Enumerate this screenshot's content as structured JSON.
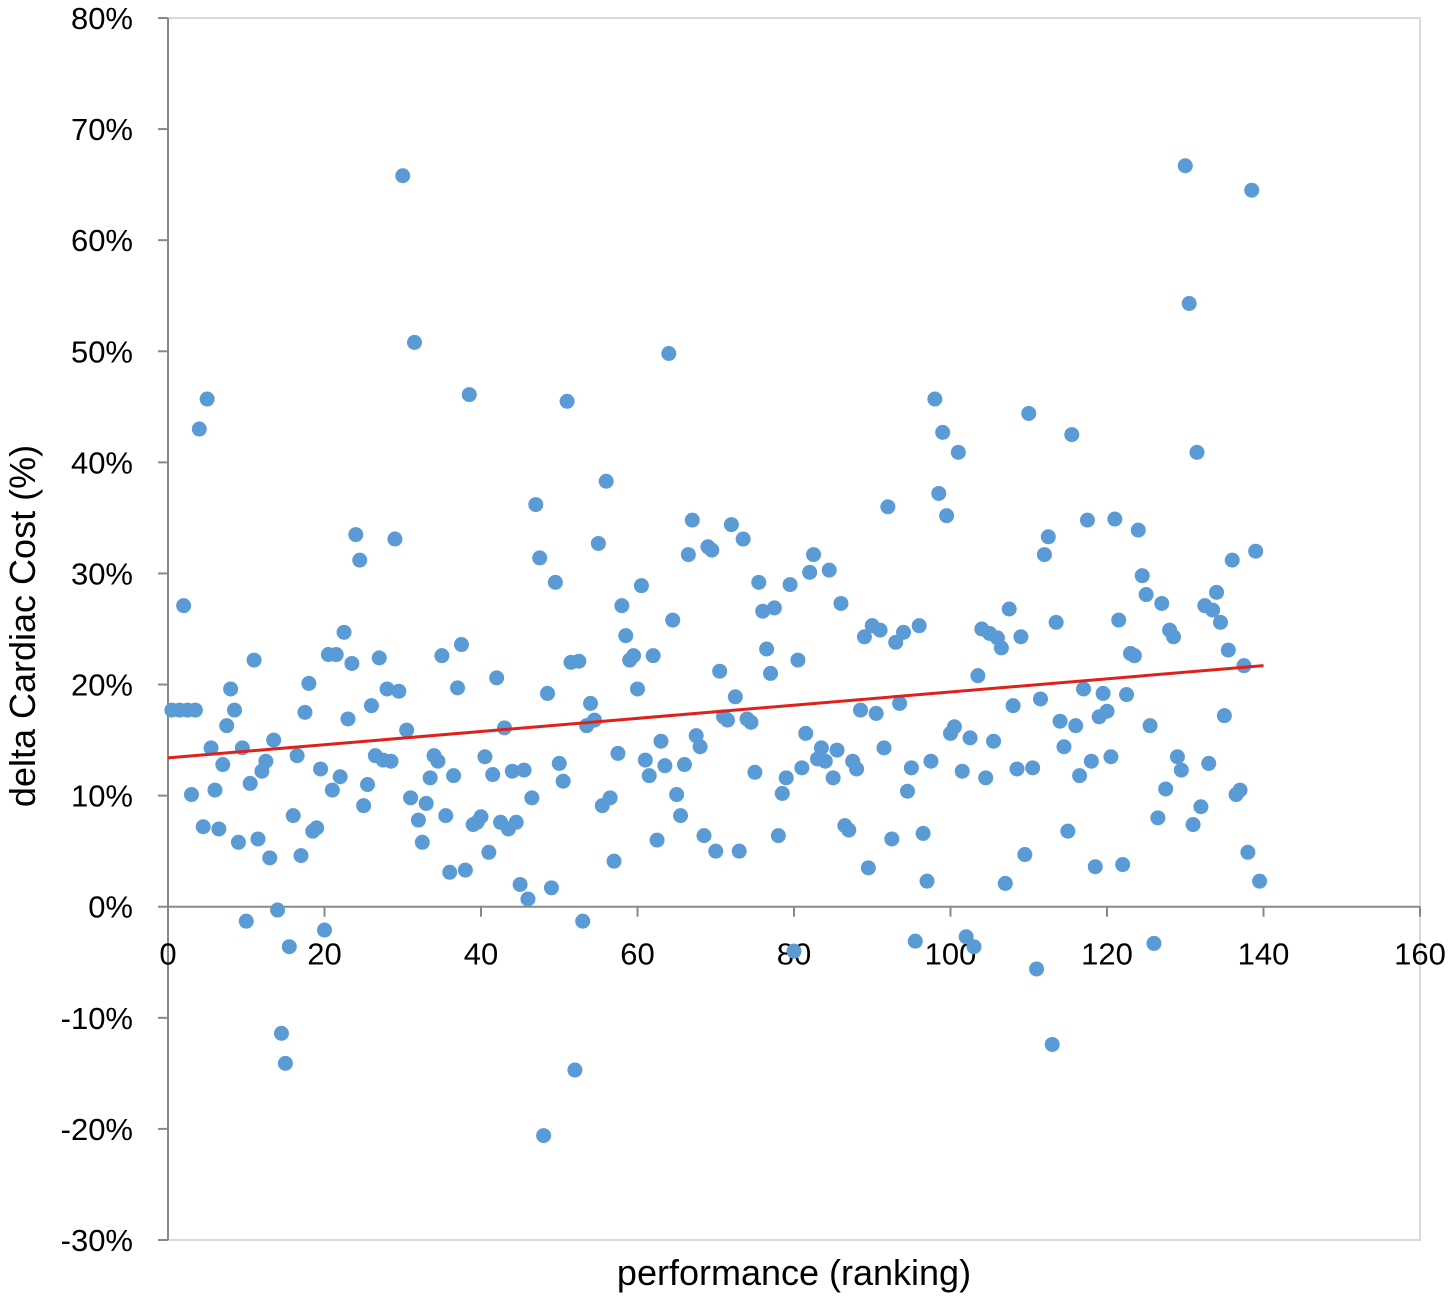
{
  "chart_data": {
    "type": "scatter",
    "title": "",
    "xlabel": "performance  (ranking)",
    "ylabel": "delta Cardiac Cost  (%)",
    "xlim": [
      0,
      160
    ],
    "ylim": [
      -30,
      80
    ],
    "x_ticks": [
      0,
      20,
      40,
      60,
      80,
      100,
      120,
      140,
      160
    ],
    "x_tick_labels": [
      "0",
      "20",
      "40",
      "60",
      "80",
      "100",
      "120",
      "140",
      "160"
    ],
    "y_ticks": [
      -30,
      -20,
      -10,
      0,
      10,
      20,
      30,
      40,
      50,
      60,
      70,
      80
    ],
    "y_tick_labels": [
      "-30%",
      "-20%",
      "-10%",
      "0%",
      "10%",
      "20%",
      "30%",
      "40%",
      "50%",
      "60%",
      "70%",
      "80%"
    ],
    "grid": false,
    "legend": "none",
    "series": [
      {
        "type": "scatter",
        "color": "#5B9BD5",
        "points": [
          [
            0.5,
            17.7
          ],
          [
            1.5,
            17.7
          ],
          [
            2,
            27.1
          ],
          [
            2.5,
            17.7
          ],
          [
            3,
            10.1
          ],
          [
            3.5,
            17.7
          ],
          [
            4,
            43.0
          ],
          [
            4.5,
            7.2
          ],
          [
            5,
            45.7
          ],
          [
            5.5,
            14.3
          ],
          [
            6,
            10.5
          ],
          [
            6.5,
            7.0
          ],
          [
            7,
            12.8
          ],
          [
            7.5,
            16.3
          ],
          [
            8,
            19.6
          ],
          [
            8.5,
            17.7
          ],
          [
            9,
            5.8
          ],
          [
            9.5,
            14.3
          ],
          [
            10,
            -1.3
          ],
          [
            10.5,
            11.1
          ],
          [
            11,
            22.2
          ],
          [
            11.5,
            6.1
          ],
          [
            12,
            12.2
          ],
          [
            12.5,
            13.1
          ],
          [
            13,
            4.4
          ],
          [
            13.5,
            15.0
          ],
          [
            14,
            -0.3
          ],
          [
            14.5,
            -11.4
          ],
          [
            15,
            -14.1
          ],
          [
            15.5,
            -3.6
          ],
          [
            16,
            8.2
          ],
          [
            16.5,
            13.6
          ],
          [
            17,
            4.6
          ],
          [
            17.5,
            17.5
          ],
          [
            18,
            20.1
          ],
          [
            18.5,
            6.8
          ],
          [
            19,
            7.1
          ],
          [
            19.5,
            12.4
          ],
          [
            20,
            -2.1
          ],
          [
            20.5,
            22.7
          ],
          [
            21,
            10.5
          ],
          [
            21.5,
            22.7
          ],
          [
            22,
            11.7
          ],
          [
            22.5,
            24.7
          ],
          [
            23,
            16.9
          ],
          [
            23.5,
            21.9
          ],
          [
            24,
            33.5
          ],
          [
            24.5,
            31.2
          ],
          [
            25,
            9.1
          ],
          [
            25.5,
            11.0
          ],
          [
            26,
            18.1
          ],
          [
            26.5,
            13.6
          ],
          [
            27,
            22.4
          ],
          [
            27.5,
            13.2
          ],
          [
            28,
            19.6
          ],
          [
            28.5,
            13.1
          ],
          [
            29,
            33.1
          ],
          [
            29.5,
            19.4
          ],
          [
            30,
            65.8
          ],
          [
            30.5,
            15.9
          ],
          [
            31,
            9.8
          ],
          [
            31.5,
            50.8
          ],
          [
            32,
            7.8
          ],
          [
            32.5,
            5.8
          ],
          [
            33,
            9.3
          ],
          [
            33.5,
            11.6
          ],
          [
            34,
            13.6
          ],
          [
            34.5,
            13.1
          ],
          [
            35,
            22.6
          ],
          [
            35.5,
            8.2
          ],
          [
            36,
            3.1
          ],
          [
            36.5,
            11.8
          ],
          [
            37,
            19.7
          ],
          [
            37.5,
            23.6
          ],
          [
            38,
            3.3
          ],
          [
            38.5,
            46.1
          ],
          [
            39,
            7.4
          ],
          [
            39.5,
            7.6
          ],
          [
            40,
            8.1
          ],
          [
            40.5,
            13.5
          ],
          [
            41,
            4.9
          ],
          [
            41.5,
            11.9
          ],
          [
            42,
            20.6
          ],
          [
            42.5,
            7.6
          ],
          [
            43,
            16.1
          ],
          [
            43.5,
            7.0
          ],
          [
            44,
            12.2
          ],
          [
            44.5,
            7.6
          ],
          [
            45,
            2.0
          ],
          [
            45.5,
            12.3
          ],
          [
            46,
            0.7
          ],
          [
            46.5,
            9.8
          ],
          [
            47,
            36.2
          ],
          [
            47.5,
            31.4
          ],
          [
            48,
            -20.6
          ],
          [
            48.5,
            19.2
          ],
          [
            49,
            1.7
          ],
          [
            49.5,
            29.2
          ],
          [
            50,
            12.9
          ],
          [
            50.5,
            11.3
          ],
          [
            51,
            45.5
          ],
          [
            51.5,
            22.0
          ],
          [
            52,
            -14.7
          ],
          [
            52.5,
            22.1
          ],
          [
            53,
            -1.3
          ],
          [
            53.5,
            16.3
          ],
          [
            54,
            18.3
          ],
          [
            54.5,
            16.8
          ],
          [
            55,
            32.7
          ],
          [
            55.5,
            9.1
          ],
          [
            56,
            38.3
          ],
          [
            56.5,
            9.8
          ],
          [
            57,
            4.1
          ],
          [
            57.5,
            13.8
          ],
          [
            58,
            27.1
          ],
          [
            58.5,
            24.4
          ],
          [
            59,
            22.2
          ],
          [
            59.5,
            22.6
          ],
          [
            60,
            19.6
          ],
          [
            60.5,
            28.9
          ],
          [
            61,
            13.2
          ],
          [
            61.5,
            11.8
          ],
          [
            62,
            22.6
          ],
          [
            62.5,
            6.0
          ],
          [
            63,
            14.9
          ],
          [
            63.5,
            12.7
          ],
          [
            64,
            49.8
          ],
          [
            64.5,
            25.8
          ],
          [
            65,
            10.1
          ],
          [
            65.5,
            8.2
          ],
          [
            66,
            12.8
          ],
          [
            66.5,
            31.7
          ],
          [
            67,
            34.8
          ],
          [
            67.5,
            15.4
          ],
          [
            68,
            14.4
          ],
          [
            68.5,
            6.4
          ],
          [
            69,
            32.4
          ],
          [
            69.5,
            32.1
          ],
          [
            70,
            5.0
          ],
          [
            70.5,
            21.2
          ],
          [
            71,
            17.1
          ],
          [
            71.5,
            16.8
          ],
          [
            72,
            34.4
          ],
          [
            72.5,
            18.9
          ],
          [
            73,
            5.0
          ],
          [
            73.5,
            33.1
          ],
          [
            74,
            16.9
          ],
          [
            74.5,
            16.6
          ],
          [
            75,
            12.1
          ],
          [
            75.5,
            29.2
          ],
          [
            76,
            26.6
          ],
          [
            76.5,
            23.2
          ],
          [
            77,
            21.0
          ],
          [
            77.5,
            26.9
          ],
          [
            78,
            6.4
          ],
          [
            78.5,
            10.2
          ],
          [
            79,
            11.6
          ],
          [
            79.5,
            29.0
          ],
          [
            80,
            -4.0
          ],
          [
            80.5,
            22.2
          ],
          [
            81,
            12.5
          ],
          [
            81.5,
            15.6
          ],
          [
            82,
            30.1
          ],
          [
            82.5,
            31.7
          ],
          [
            83,
            13.3
          ],
          [
            83.5,
            14.3
          ],
          [
            84,
            13.1
          ],
          [
            84.5,
            30.3
          ],
          [
            85,
            11.6
          ],
          [
            85.5,
            14.1
          ],
          [
            86,
            27.3
          ],
          [
            86.5,
            7.3
          ],
          [
            87,
            6.9
          ],
          [
            87.5,
            13.1
          ],
          [
            88,
            12.4
          ],
          [
            88.5,
            17.7
          ],
          [
            89,
            24.3
          ],
          [
            89.5,
            3.5
          ],
          [
            90,
            25.3
          ],
          [
            90.5,
            17.4
          ],
          [
            91,
            24.9
          ],
          [
            91.5,
            14.3
          ],
          [
            92,
            36.0
          ],
          [
            92.5,
            6.1
          ],
          [
            93,
            23.8
          ],
          [
            93.5,
            18.3
          ],
          [
            94,
            24.7
          ],
          [
            94.5,
            10.4
          ],
          [
            95,
            12.5
          ],
          [
            95.5,
            -3.1
          ],
          [
            96,
            25.3
          ],
          [
            96.5,
            6.6
          ],
          [
            97,
            2.3
          ],
          [
            97.5,
            13.1
          ],
          [
            98,
            45.7
          ],
          [
            98.5,
            37.2
          ],
          [
            99,
            42.7
          ],
          [
            99.5,
            35.2
          ],
          [
            100,
            15.6
          ],
          [
            100.5,
            16.2
          ],
          [
            101,
            40.9
          ],
          [
            101.5,
            12.2
          ],
          [
            102,
            -2.7
          ],
          [
            102.5,
            15.2
          ],
          [
            103,
            -3.6
          ],
          [
            103.5,
            20.8
          ],
          [
            104,
            25.0
          ],
          [
            104.5,
            11.6
          ],
          [
            105,
            24.6
          ],
          [
            105.5,
            14.9
          ],
          [
            106,
            24.2
          ],
          [
            106.5,
            23.3
          ],
          [
            107,
            2.1
          ],
          [
            107.5,
            26.8
          ],
          [
            108,
            18.1
          ],
          [
            108.5,
            12.4
          ],
          [
            109,
            24.3
          ],
          [
            109.5,
            4.7
          ],
          [
            110,
            44.4
          ],
          [
            110.5,
            12.5
          ],
          [
            111,
            -5.6
          ],
          [
            111.5,
            18.7
          ],
          [
            112,
            31.7
          ],
          [
            112.5,
            33.3
          ],
          [
            113,
            -12.4
          ],
          [
            113.5,
            25.6
          ],
          [
            114,
            16.7
          ],
          [
            114.5,
            14.4
          ],
          [
            115,
            6.8
          ],
          [
            115.5,
            42.5
          ],
          [
            116,
            16.3
          ],
          [
            116.5,
            11.8
          ],
          [
            117,
            19.6
          ],
          [
            117.5,
            34.8
          ],
          [
            118,
            13.1
          ],
          [
            118.5,
            3.6
          ],
          [
            119,
            17.1
          ],
          [
            119.5,
            19.2
          ],
          [
            120,
            17.6
          ],
          [
            120.5,
            13.5
          ],
          [
            121,
            34.9
          ],
          [
            121.5,
            25.8
          ],
          [
            122,
            3.8
          ],
          [
            122.5,
            19.1
          ],
          [
            123,
            22.8
          ],
          [
            123.5,
            22.6
          ],
          [
            124,
            33.9
          ],
          [
            124.5,
            29.8
          ],
          [
            125,
            28.1
          ],
          [
            125.5,
            16.3
          ],
          [
            126,
            -3.3
          ],
          [
            126.5,
            8.0
          ],
          [
            127,
            27.3
          ],
          [
            127.5,
            10.6
          ],
          [
            128,
            24.9
          ],
          [
            128.5,
            24.3
          ],
          [
            129,
            13.5
          ],
          [
            129.5,
            12.3
          ],
          [
            130,
            66.7
          ],
          [
            130.5,
            54.3
          ],
          [
            131,
            7.4
          ],
          [
            131.5,
            40.9
          ],
          [
            132,
            9.0
          ],
          [
            132.5,
            27.1
          ],
          [
            133,
            12.9
          ],
          [
            133.5,
            26.7
          ],
          [
            134,
            28.3
          ],
          [
            134.5,
            25.6
          ],
          [
            135,
            17.2
          ],
          [
            135.5,
            23.1
          ],
          [
            136,
            31.2
          ],
          [
            136.5,
            10.1
          ],
          [
            137,
            10.5
          ],
          [
            137.5,
            21.7
          ],
          [
            138,
            4.9
          ],
          [
            138.5,
            64.5
          ],
          [
            139,
            32.0
          ],
          [
            139.5,
            2.3
          ]
        ]
      }
    ],
    "trendline": {
      "type": "linear",
      "color": "#E0201B",
      "x": [
        0,
        140
      ],
      "y": [
        13.4,
        21.7
      ]
    }
  }
}
